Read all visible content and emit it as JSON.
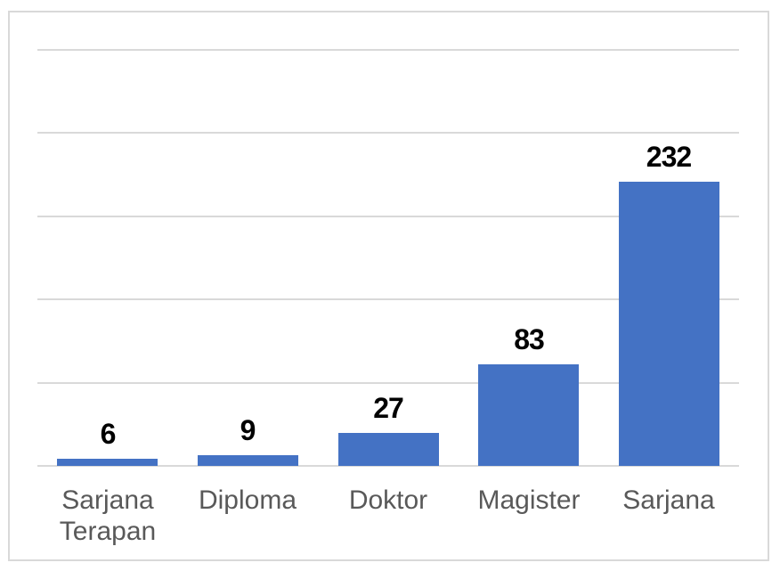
{
  "chart_data": {
    "type": "bar",
    "title": "",
    "xlabel": "",
    "ylabel": "",
    "categories": [
      "Sarjana Terapan",
      "Diploma",
      "Doktor",
      "Magister",
      "Sarjana"
    ],
    "values": [
      6,
      9,
      27,
      83,
      232
    ],
    "data_labels": [
      "6",
      "9",
      "27",
      "83",
      "232"
    ],
    "data_labels_visible": true,
    "ylim": [
      0,
      340
    ],
    "y_gridline_step": 68,
    "y_tick_labels_visible": false,
    "grid": "horizontal",
    "legend": "none",
    "colors": {
      "bar": "#4472C4",
      "gridline": "#D9D9D9",
      "axis_line": "#D9D9D9",
      "chart_border": "#D9D9D9",
      "data_label": "#000000",
      "category_label": "#595959",
      "background": "#FFFFFF"
    }
  }
}
